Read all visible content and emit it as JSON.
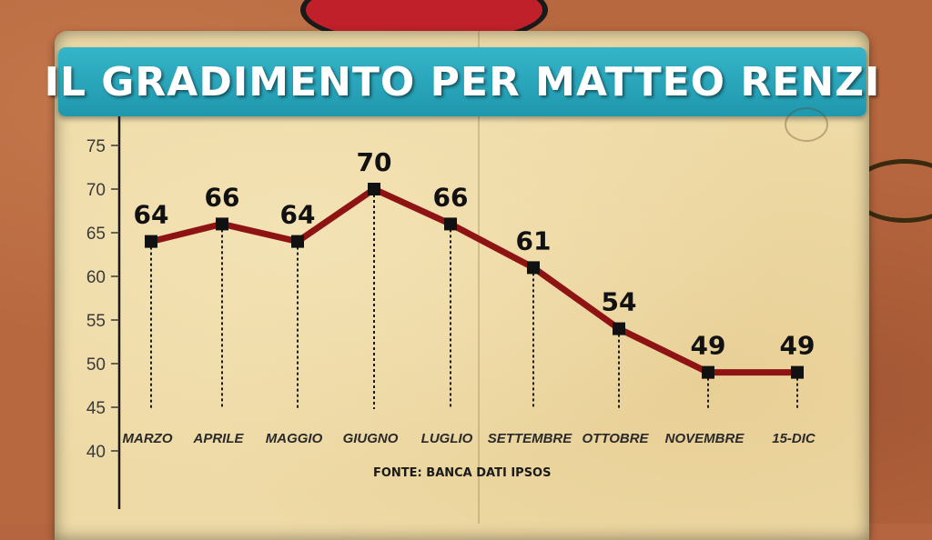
{
  "title": "IL GRADIMENTO PER MATTEO RENZI",
  "source": "FONTE: BANCA DATI IPSOS",
  "colors": {
    "line": "#8e1414",
    "marker": "#111111",
    "banner": "#2aa7bd",
    "paper": "#eedaa6"
  },
  "chart_data": {
    "type": "line",
    "title": "IL GRADIMENTO PER MATTEO RENZI",
    "categories": [
      "MARZO",
      "APRILE",
      "MAGGIO",
      "GIUGNO",
      "LUGLIO",
      "SETTEMBRE",
      "OTTOBRE",
      "NOVEMBRE",
      "15-DIC"
    ],
    "values": [
      64,
      66,
      64,
      70,
      66,
      61,
      54,
      49,
      49
    ],
    "data_labels": [
      "64",
      "66",
      "64",
      "70",
      "66",
      "61",
      "54",
      "49",
      "49"
    ],
    "yticks": [
      "75",
      "70",
      "65",
      "60",
      "55",
      "50",
      "45",
      "40"
    ],
    "ylim": [
      40,
      75
    ],
    "grid": false,
    "legend": "none"
  }
}
